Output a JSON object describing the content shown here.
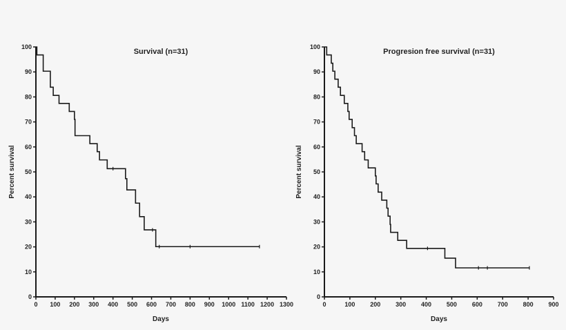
{
  "chart_data": [
    {
      "type": "line",
      "subtype": "kaplan-meier step",
      "title": "Survival (n=31)",
      "xlabel": "Days",
      "ylabel": "Percent survival",
      "xlim": [
        0,
        1300
      ],
      "ylim": [
        0,
        100
      ],
      "xticks": [
        0,
        100,
        200,
        300,
        400,
        500,
        600,
        700,
        800,
        900,
        1000,
        1100,
        1200,
        1300
      ],
      "xtick_labels": [
        "0",
        "100",
        "200",
        "300",
        "400",
        "500",
        "600",
        "700",
        "800",
        "900",
        "1000",
        "1100",
        "1200",
        "1300"
      ],
      "yticks": [
        0,
        10,
        20,
        30,
        40,
        50,
        60,
        70,
        80,
        90,
        100
      ],
      "steps": [
        [
          0,
          100
        ],
        [
          5,
          96.8
        ],
        [
          38,
          90.3
        ],
        [
          75,
          83.9
        ],
        [
          90,
          80.6
        ],
        [
          120,
          77.4
        ],
        [
          173,
          74.2
        ],
        [
          200,
          71.0
        ],
        [
          203,
          64.5
        ],
        [
          280,
          61.3
        ],
        [
          318,
          58.1
        ],
        [
          330,
          54.8
        ],
        [
          370,
          51.3
        ],
        [
          465,
          47.3
        ],
        [
          472,
          42.8
        ],
        [
          517,
          37.5
        ],
        [
          538,
          32.1
        ],
        [
          562,
          26.8
        ],
        [
          622,
          20.1
        ]
      ],
      "end": 1160,
      "censored": [
        400,
        605,
        640,
        800,
        1160
      ],
      "grid": false,
      "color": "#1a1a1a"
    },
    {
      "type": "line",
      "subtype": "kaplan-meier step",
      "title": "Progresion free survival (n=31)",
      "xlabel": "Days",
      "ylabel": "Percent survival",
      "xlim": [
        0,
        900
      ],
      "ylim": [
        0,
        100
      ],
      "xticks": [
        0,
        100,
        200,
        300,
        400,
        500,
        600,
        700,
        800,
        900
      ],
      "xtick_labels": [
        "0",
        "100",
        "200",
        "300",
        "400",
        "500",
        "600",
        "700",
        "800",
        "900"
      ],
      "yticks": [
        0,
        10,
        20,
        30,
        40,
        50,
        60,
        70,
        80,
        90,
        100
      ],
      "steps": [
        [
          0,
          100
        ],
        [
          9,
          96.8
        ],
        [
          27,
          93.5
        ],
        [
          33,
          90.3
        ],
        [
          41,
          87.1
        ],
        [
          54,
          83.9
        ],
        [
          63,
          80.6
        ],
        [
          78,
          77.4
        ],
        [
          92,
          74.2
        ],
        [
          97,
          71.0
        ],
        [
          109,
          67.7
        ],
        [
          118,
          64.5
        ],
        [
          125,
          61.3
        ],
        [
          148,
          58.1
        ],
        [
          158,
          54.8
        ],
        [
          172,
          51.6
        ],
        [
          200,
          48.4
        ],
        [
          203,
          45.2
        ],
        [
          211,
          41.9
        ],
        [
          225,
          38.7
        ],
        [
          245,
          35.5
        ],
        [
          250,
          32.3
        ],
        [
          258,
          29.0
        ],
        [
          260,
          25.8
        ],
        [
          288,
          22.6
        ],
        [
          323,
          19.4
        ],
        [
          473,
          15.5
        ],
        [
          515,
          11.6
        ]
      ],
      "end": 805,
      "censored": [
        405,
        605,
        640,
        805
      ],
      "grid": false,
      "color": "#1a1a1a"
    }
  ]
}
